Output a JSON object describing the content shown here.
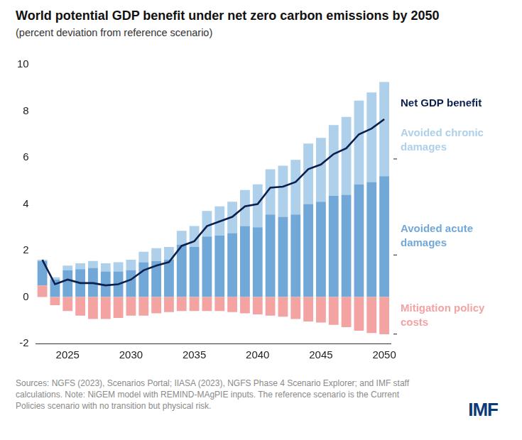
{
  "chart_data": {
    "type": "bar",
    "title": "World potential GDP benefit under net zero carbon emissions by 2050",
    "subtitle": "(percent deviation from reference scenario)",
    "source": "Sources: NGFS (2023), Scenarios Portal; IIASA (2023), NGFS Phase 4 Scenario Explorer; and IMF staff calculations. Note: NiGEM model with REMIND-MAgPIE inputs. The reference scenario is the Current Policies scenario with no transition but physical risk.",
    "logo": "IMF",
    "stacked": true,
    "grid": false,
    "categories": [
      null,
      null,
      "2025",
      null,
      null,
      null,
      null,
      "2030",
      null,
      null,
      null,
      null,
      "2035",
      null,
      null,
      null,
      null,
      "2040",
      null,
      null,
      null,
      null,
      "2045",
      null,
      null,
      null,
      null,
      "2050"
    ],
    "series": [
      {
        "name": "Mitigation policy costs",
        "type": "bar",
        "color": "#f4a3a3",
        "values": [
          0.5,
          -0.35,
          -0.6,
          -0.8,
          -0.95,
          -0.95,
          -0.9,
          -0.8,
          -0.8,
          -0.7,
          -0.65,
          -0.6,
          -0.6,
          -0.6,
          -0.6,
          -0.65,
          -0.7,
          -0.75,
          -0.8,
          -0.85,
          -0.95,
          -1.05,
          -1.1,
          -1.2,
          -1.3,
          -1.45,
          -1.55,
          -1.6
        ]
      },
      {
        "name": "Avoided acute damages",
        "type": "bar",
        "color": "#72a8d8",
        "values": [
          1.05,
          0.75,
          1.15,
          1.2,
          1.25,
          1.1,
          1.1,
          1.15,
          1.5,
          1.55,
          1.6,
          2.25,
          2.15,
          2.6,
          2.65,
          2.75,
          3.05,
          3.0,
          3.55,
          3.45,
          3.55,
          4.0,
          4.1,
          4.35,
          4.4,
          4.85,
          4.95,
          5.2
        ]
      },
      {
        "name": "Avoided chronic damages",
        "type": "bar",
        "color": "#aed0ea",
        "values": [
          0.05,
          0.1,
          0.2,
          0.25,
          0.3,
          0.35,
          0.4,
          0.45,
          0.45,
          0.55,
          0.55,
          0.6,
          0.9,
          1.1,
          1.25,
          1.35,
          1.55,
          1.85,
          1.95,
          2.2,
          2.35,
          2.6,
          2.75,
          3.05,
          3.35,
          3.6,
          3.85,
          4.05
        ]
      },
      {
        "name": "Net GDP benefit",
        "type": "line",
        "color": "#0b1f4f",
        "values": [
          1.6,
          0.55,
          0.75,
          0.6,
          0.6,
          0.5,
          0.55,
          0.75,
          1.15,
          1.35,
          1.5,
          2.2,
          2.4,
          3.05,
          3.25,
          3.45,
          3.9,
          4.0,
          4.7,
          4.75,
          4.95,
          5.5,
          5.7,
          6.15,
          6.4,
          7.0,
          7.25,
          7.65
        ]
      }
    ],
    "ylim": [
      -2,
      10
    ],
    "yticks": [
      -2,
      0,
      2,
      4,
      6,
      8,
      10
    ]
  }
}
